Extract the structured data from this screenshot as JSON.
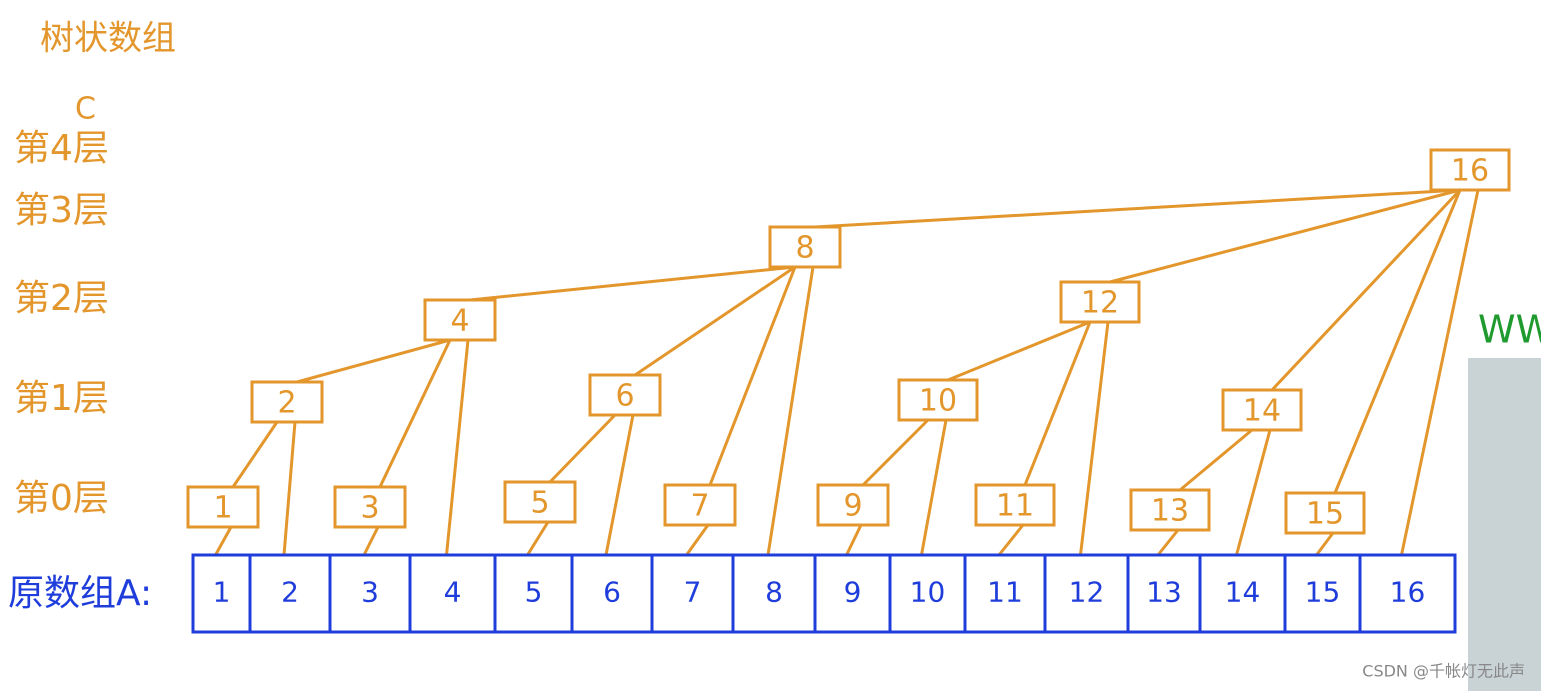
{
  "header": {
    "title": "树状数组",
    "c_label": "C"
  },
  "layers": [
    "第4层",
    "第3层",
    "第2层",
    "第1层",
    "第0层"
  ],
  "array_label": "原数组A:",
  "nodes": [
    {
      "label": "1"
    },
    {
      "label": "2"
    },
    {
      "label": "3"
    },
    {
      "label": "4"
    },
    {
      "label": "5"
    },
    {
      "label": "6"
    },
    {
      "label": "7"
    },
    {
      "label": "8"
    },
    {
      "label": "9"
    },
    {
      "label": "10"
    },
    {
      "label": "11"
    },
    {
      "label": "12"
    },
    {
      "label": "13"
    },
    {
      "label": "14"
    },
    {
      "label": "15"
    },
    {
      "label": "16"
    }
  ],
  "array": [
    "1",
    "2",
    "3",
    "4",
    "5",
    "6",
    "7",
    "8",
    "9",
    "10",
    "11",
    "12",
    "13",
    "14",
    "15",
    "16"
  ],
  "side_text": "WW",
  "watermark": "CSDN @千帐灯无此声"
}
